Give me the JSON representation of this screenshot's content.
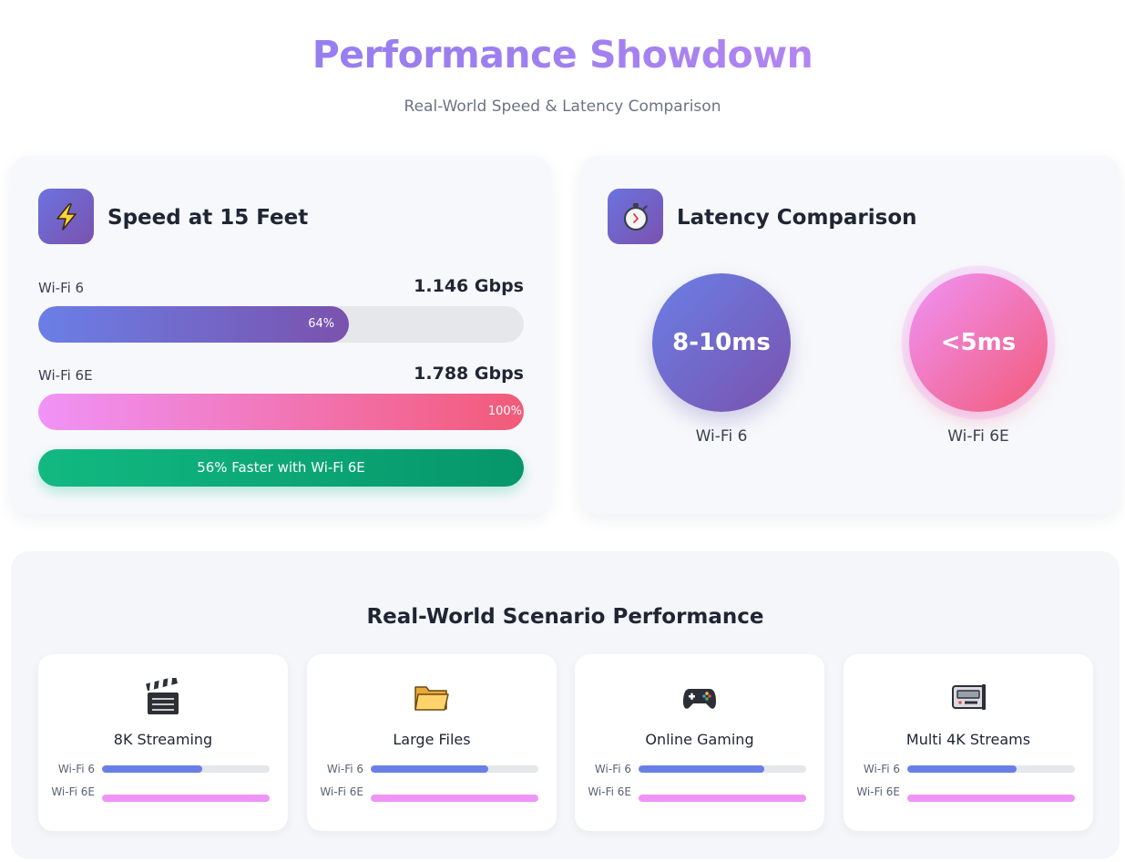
{
  "header": {
    "title": "Performance Showdown",
    "subtitle": "Real-World Speed & Latency Comparison"
  },
  "speed_card": {
    "icon": "lightning-icon",
    "title": "Speed at 15 Feet",
    "rows": [
      {
        "label": "Wi-Fi 6",
        "value": "1.146 Gbps",
        "percent_label": "64%",
        "fill_fraction": 0.64
      },
      {
        "label": "Wi-Fi 6E",
        "value": "1.788 Gbps",
        "percent_label": "100%",
        "fill_fraction": 1.0
      }
    ],
    "badge": "56% Faster with Wi-Fi 6E"
  },
  "latency_card": {
    "icon": "stopwatch-icon",
    "title": "Latency Comparison",
    "items": [
      {
        "value": "8-10ms",
        "label": "Wi-Fi 6"
      },
      {
        "value": "<5ms",
        "label": "Wi-Fi 6E"
      }
    ]
  },
  "scenarios": {
    "title": "Real-World Scenario Performance",
    "items": [
      {
        "icon": "clapperboard-icon",
        "name": "8K Streaming",
        "wifi6_label": "Wi-Fi 6",
        "wifi6e_label": "Wi-Fi 6E",
        "wifi6_fraction": 0.6,
        "wifi6e_fraction": 1.0
      },
      {
        "icon": "folder-icon",
        "name": "Large Files",
        "wifi6_label": "Wi-Fi 6",
        "wifi6e_label": "Wi-Fi 6E",
        "wifi6_fraction": 0.7,
        "wifi6e_fraction": 1.0
      },
      {
        "icon": "game-controller-icon",
        "name": "Online Gaming",
        "wifi6_label": "Wi-Fi 6",
        "wifi6e_label": "Wi-Fi 6E",
        "wifi6_fraction": 0.75,
        "wifi6e_fraction": 1.0
      },
      {
        "icon": "video-camera-icon",
        "name": "Multi 4K Streams",
        "wifi6_label": "Wi-Fi 6",
        "wifi6e_label": "Wi-Fi 6E",
        "wifi6_fraction": 0.65,
        "wifi6e_fraction": 1.0
      }
    ]
  },
  "colors": {
    "wifi6": "#6a7fe6",
    "wifi6e": "#f093f7",
    "accent_green": "#10b981"
  }
}
